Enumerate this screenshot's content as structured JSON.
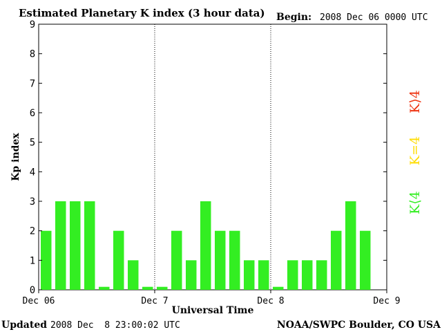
{
  "header": {
    "title": "Estimated Planetary K index (3 hour data)",
    "begin_label": "Begin:",
    "begin_value": "2008 Dec 06 0000 UTC"
  },
  "footer": {
    "updated_label": "Updated",
    "updated_value": "2008 Dec  8 23:00:02 UTC",
    "credit": "NOAA/SWPC Boulder, CO USA"
  },
  "legend": {
    "high": "K⟩4",
    "equal": "K=4",
    "low": "K⟨4"
  },
  "colors": {
    "low": "#33ee22",
    "equal": "#ffdd00",
    "high": "#ee3311",
    "axis": "#000000"
  },
  "chart_data": {
    "type": "bar",
    "title": "Estimated Planetary K index (3 hour data)",
    "xlabel": "Universal Time",
    "ylabel": "Kp index",
    "ylim": [
      0,
      9
    ],
    "yticks": [
      "0",
      "1",
      "2",
      "3",
      "4",
      "5",
      "6",
      "7",
      "8",
      "9"
    ],
    "xticks": [
      "Dec 06",
      "Dec 7",
      "Dec 8",
      "Dec 9"
    ],
    "day_separators": "dotted",
    "series": [
      {
        "values": [
          2,
          3,
          3,
          3,
          0.1,
          2,
          1,
          0.1,
          0.1,
          2,
          1,
          3,
          2,
          2,
          1,
          1,
          0.1,
          1,
          1,
          1,
          2,
          3,
          2
        ]
      }
    ]
  }
}
